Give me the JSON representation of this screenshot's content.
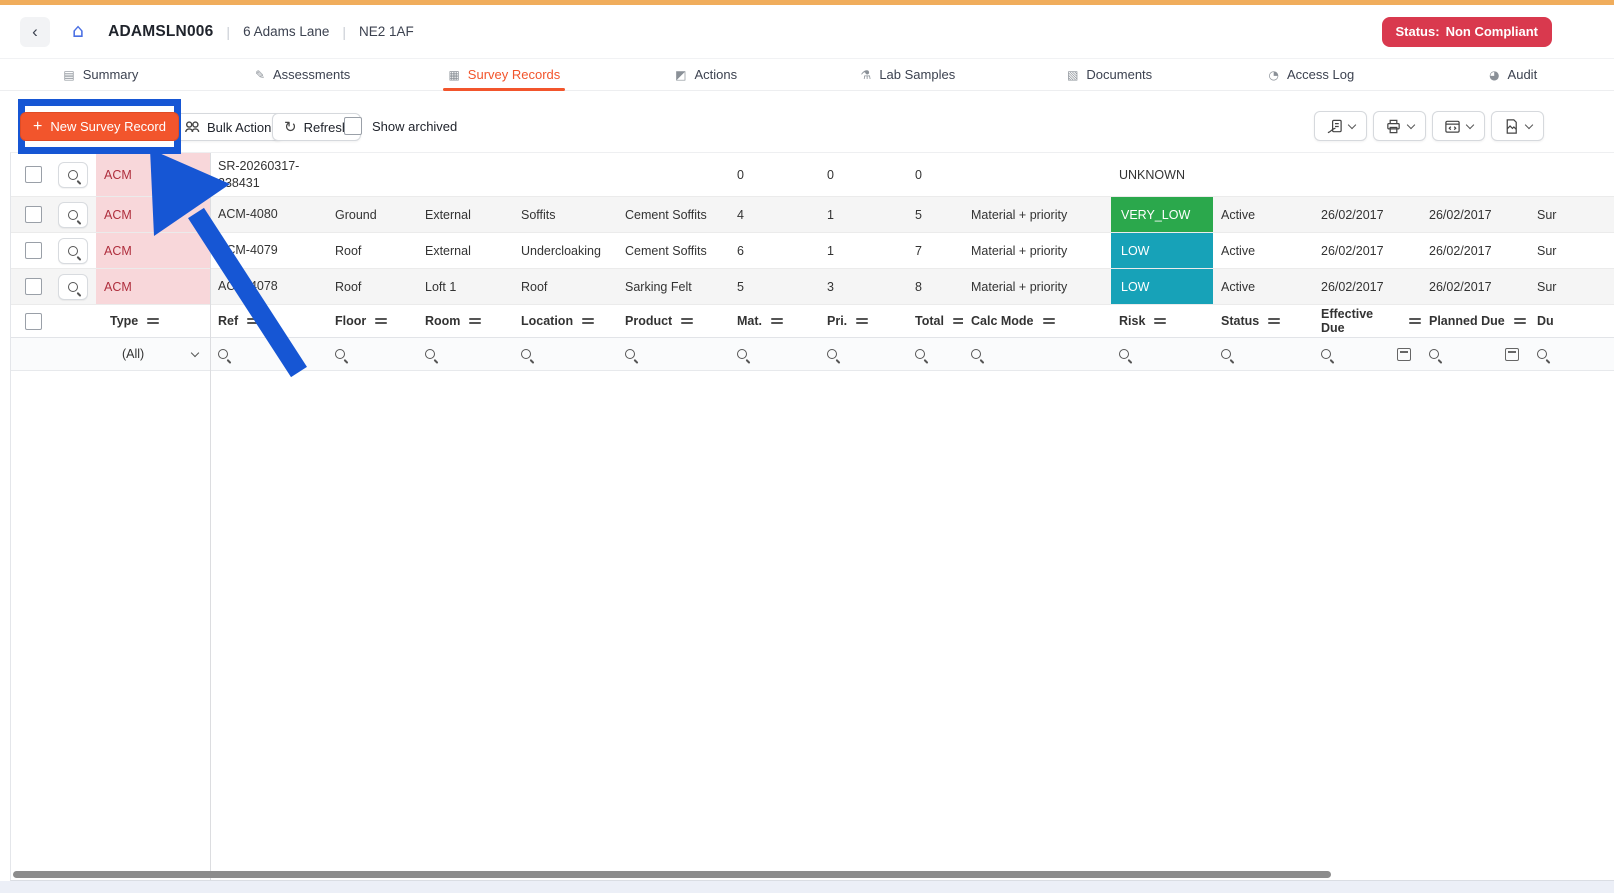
{
  "page": {
    "top_strip_color": "#F0AD5C",
    "accent_color": "#F2552C",
    "annotation_color": "#1656D4"
  },
  "header": {
    "site_code": "ADAMSLN006",
    "address": "6 Adams Lane",
    "postcode": "NE2 1AF",
    "separator": "|",
    "status_label": "Status:",
    "status_value": "Non Compliant",
    "status_color": "#D9394E"
  },
  "icons": {
    "back_glyph": "‹",
    "home_glyph": "⌂",
    "plus_glyph": "+",
    "refresh_glyph": "↻"
  },
  "tabs": [
    {
      "slug": "summary",
      "label": "Summary",
      "glyph": "▤",
      "active": false
    },
    {
      "slug": "assessments",
      "label": "Assessments",
      "glyph": "✎",
      "active": false
    },
    {
      "slug": "survey-records",
      "label": "Survey Records",
      "glyph": "▦",
      "active": true
    },
    {
      "slug": "actions",
      "label": "Actions",
      "glyph": "◩",
      "active": false
    },
    {
      "slug": "lab-samples",
      "label": "Lab Samples",
      "glyph": "⚗",
      "active": false
    },
    {
      "slug": "documents",
      "label": "Documents",
      "glyph": "▧",
      "active": false
    },
    {
      "slug": "access-log",
      "label": "Access Log",
      "glyph": "◔",
      "active": false
    },
    {
      "slug": "audit",
      "label": "Audit",
      "glyph": "◕",
      "active": false
    }
  ],
  "toolbar": {
    "new_record_label": "New Survey Record",
    "bulk_action_label": "Bulk Action",
    "refresh_label": "Refresh",
    "show_archived_label": "Show archived"
  },
  "grid": {
    "columns": [
      {
        "key": "select",
        "label": "",
        "filter": "none"
      },
      {
        "key": "zoom",
        "label": "",
        "filter": "none"
      },
      {
        "key": "type",
        "label": "Type",
        "filter": "select",
        "filter_value": "(All)"
      },
      {
        "key": "ref",
        "label": "Ref",
        "filter": "search"
      },
      {
        "key": "floor",
        "label": "Floor",
        "filter": "search"
      },
      {
        "key": "room",
        "label": "Room",
        "filter": "search"
      },
      {
        "key": "location",
        "label": "Location",
        "filter": "search"
      },
      {
        "key": "product",
        "label": "Product",
        "filter": "search"
      },
      {
        "key": "mat",
        "label": "Mat.",
        "filter": "search"
      },
      {
        "key": "pri",
        "label": "Pri.",
        "filter": "search"
      },
      {
        "key": "total",
        "label": "Total",
        "filter": "search"
      },
      {
        "key": "calc_mode",
        "label": "Calc Mode",
        "filter": "search"
      },
      {
        "key": "risk",
        "label": "Risk",
        "filter": "search"
      },
      {
        "key": "status",
        "label": "Status",
        "filter": "search"
      },
      {
        "key": "effective_due",
        "label": "Effective Due",
        "filter": "search-calendar"
      },
      {
        "key": "planned_due",
        "label": "Planned Due",
        "filter": "search-calendar"
      },
      {
        "key": "due",
        "label": "Du",
        "filter": "search",
        "hide_sort_icon": true
      }
    ],
    "risk_styles": {
      "VERY_LOW": {
        "bg": "#2BA84C",
        "text": "#FFFFFF"
      },
      "LOW": {
        "bg": "#17A2B8",
        "text": "#FFFFFF"
      },
      "UNKNOWN": {
        "bg": "",
        "text": "#333333"
      }
    },
    "type_style": {
      "bg": "#F8D7DA",
      "text": "#AF2E3D"
    },
    "rows": [
      {
        "type": "ACM",
        "ref": "SR-20260317-238431",
        "floor": "",
        "room": "",
        "location": "",
        "product": "",
        "mat": "0",
        "pri": "0",
        "total": "0",
        "calc_mode": "",
        "risk": "UNKNOWN",
        "status": "",
        "effective_due": "",
        "planned_due": "",
        "due": ""
      },
      {
        "type": "ACM",
        "ref": "ACM-4080",
        "floor": "Ground",
        "room": "External",
        "location": "Soffits",
        "product": "Cement Soffits",
        "mat": "4",
        "pri": "1",
        "total": "5",
        "calc_mode": "Material + priority",
        "risk": "VERY_LOW",
        "status": "Active",
        "effective_due": "26/02/2017",
        "planned_due": "26/02/2017",
        "due": "Sur"
      },
      {
        "type": "ACM",
        "ref": "ACM-4079",
        "floor": "Roof",
        "room": "External",
        "location": "Undercloaking",
        "product": "Cement Soffits",
        "mat": "6",
        "pri": "1",
        "total": "7",
        "calc_mode": "Material + priority",
        "risk": "LOW",
        "status": "Active",
        "effective_due": "26/02/2017",
        "planned_due": "26/02/2017",
        "due": "Sur"
      },
      {
        "type": "ACM",
        "ref": "ACM-4078",
        "floor": "Roof",
        "room": "Loft 1",
        "location": "Roof",
        "product": "Sarking Felt",
        "mat": "5",
        "pri": "3",
        "total": "8",
        "calc_mode": "Material + priority",
        "risk": "LOW",
        "status": "Active",
        "effective_due": "26/02/2017",
        "planned_due": "26/02/2017",
        "due": "Sur"
      }
    ]
  }
}
